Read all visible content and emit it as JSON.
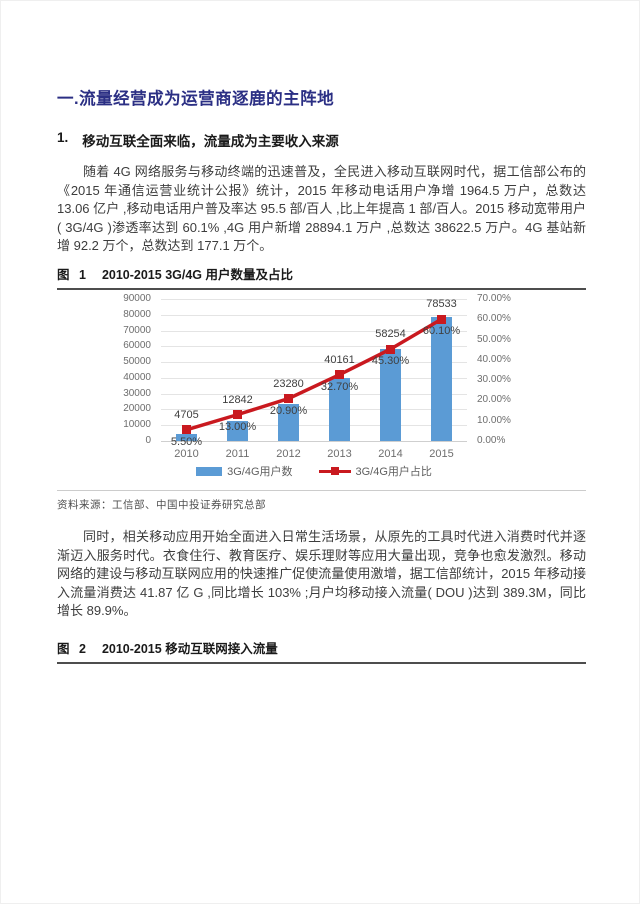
{
  "page": {
    "heading": "一.流量经营成为运营商逐鹿的主阵地",
    "subheading_number": "1.",
    "subheading_text": "移动互联全面来临，流量成为主要收入来源",
    "paragraph1": "随着 4G 网络服务与移动终端的迅速普及，全民进入移动互联网时代，据工信部公布的《2015 年通信运营业统计公报》统计，2015 年移动电话用户净增 1964.5 万户，总数达 13.06 亿户 ,移动电话用户普及率达 95.5 部/百人 ,比上年提高 1 部/百人。2015 移动宽带用户( 3G/4G )渗透率达到 60.1% ,4G 用户新增 28894.1 万户 ,总数达 38622.5 万户。4G 基站新增 92.2 万个，总数达到 177.1 万个。",
    "figure1_label": "图 1",
    "figure1_title": "2010-2015 3G/4G 用户数量及占比",
    "source_note": "资料来源：工信部、中国中投证券研究总部",
    "paragraph2": "同时，相关移动应用开始全面进入日常生活场景，从原先的工具时代进入消费时代并逐渐迈入服务时代。衣食住行、教育医疗、娱乐理财等应用大量出现，竞争也愈发激烈。移动网络的建设与移动互联网应用的快速推广促使流量使用激增，据工信部统计，2015 年移动接入流量消费达 41.87 亿 G ,同比增长 103% ;月户均移动接入流量( DOU )达到 389.3M，同比增长 89.9%。",
    "figure2_label": "图 2",
    "figure2_title": "2010-2015 移动互联网接入流量"
  },
  "colors": {
    "heading": "#2b2f84",
    "bar": "#5b9bd5",
    "line": "#c9191f",
    "grid": "#e4e4e4"
  },
  "chart_data": {
    "type": "bar",
    "subtype": "combo-bar-line-dual-axis",
    "title": "2010-2015 3G/4G 用户数量及占比",
    "categories": [
      "2010",
      "2011",
      "2012",
      "2013",
      "2014",
      "2015"
    ],
    "series": [
      {
        "name": "3G/4G用户数",
        "type": "bar",
        "axis": "left",
        "color": "#5b9bd5",
        "values": [
          4705,
          12842,
          23280,
          40161,
          58254,
          78533
        ],
        "labels": [
          "4705",
          "12842",
          "23280",
          "40161",
          "58254",
          "78533"
        ]
      },
      {
        "name": "3G/4G用户占比",
        "type": "line",
        "axis": "right",
        "color": "#c9191f",
        "values": [
          5.5,
          13.0,
          20.9,
          32.7,
          45.3,
          60.1
        ],
        "labels": [
          "5.50%",
          "13.00%",
          "20.90%",
          "32.70%",
          "45.30%",
          "60.10%"
        ]
      }
    ],
    "left_axis": {
      "min": 0,
      "max": 90000,
      "step": 10000,
      "ticks": [
        "0",
        "10000",
        "20000",
        "30000",
        "40000",
        "50000",
        "60000",
        "70000",
        "80000",
        "90000"
      ]
    },
    "right_axis": {
      "min": 0,
      "max": 70,
      "step": 10,
      "ticks": [
        "0.00%",
        "10.00%",
        "20.00%",
        "30.00%",
        "40.00%",
        "50.00%",
        "60.00%",
        "70.00%"
      ]
    },
    "grid": true,
    "legend_position": "bottom"
  }
}
